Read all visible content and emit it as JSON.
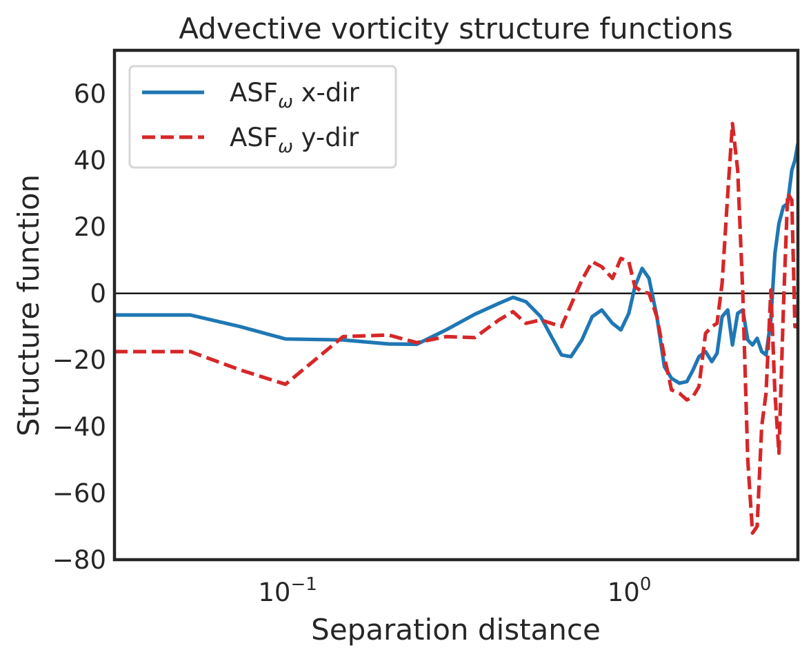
{
  "chart_data": {
    "type": "line",
    "title": "Advective vorticity structure functions",
    "xlabel": "Separation distance",
    "ylabel": "Structure function",
    "xscale": "log",
    "xlim": [
      0.03,
      3.0
    ],
    "ylim": [
      -80,
      73
    ],
    "yticks": [
      -80,
      -60,
      -40,
      -20,
      0,
      20,
      40,
      60
    ],
    "ytick_labels": [
      "−80",
      "−60",
      "−40",
      "−20",
      "0",
      "20",
      "40",
      "60"
    ],
    "xticks": [
      {
        "value": 0.1,
        "base": "10",
        "exp": "−1"
      },
      {
        "value": 1.0,
        "base": "10",
        "exp": "0"
      }
    ],
    "zero_line": true,
    "grid": false,
    "legend": {
      "position": "upper-left",
      "entries": [
        {
          "prefix": "ASF",
          "subscript": "ω",
          "suffix": " x-dir"
        },
        {
          "prefix": "ASF",
          "subscript": "ω",
          "suffix": " y-dir"
        }
      ]
    },
    "series": [
      {
        "name": "ASFω x-dir",
        "color": "#1f77b4",
        "style": "solid",
        "x": [
          0.03,
          0.05,
          0.07,
          0.095,
          0.14,
          0.19,
          0.23,
          0.28,
          0.34,
          0.4,
          0.44,
          0.48,
          0.53,
          0.57,
          0.61,
          0.65,
          0.7,
          0.75,
          0.8,
          0.86,
          0.91,
          0.96,
          1.0,
          1.05,
          1.1,
          1.16,
          1.22,
          1.28,
          1.35,
          1.42,
          1.48,
          1.54,
          1.61,
          1.68,
          1.74,
          1.8,
          1.87,
          1.93,
          2.0,
          2.07,
          2.14,
          2.21,
          2.28,
          2.35,
          2.42,
          2.5,
          2.57,
          2.64,
          2.72,
          2.8,
          2.88,
          2.94,
          3.0
        ],
        "y": [
          -6.5,
          -6.5,
          -10,
          -13.7,
          -14,
          -15.2,
          -15.3,
          -11,
          -6.3,
          -3,
          -1.2,
          -2.5,
          -7,
          -13,
          -18.5,
          -19,
          -14,
          -7,
          -5,
          -9,
          -11,
          -6,
          2,
          7.5,
          4.5,
          -7,
          -22,
          -25.5,
          -27,
          -26.5,
          -23,
          -19,
          -17.5,
          -20.5,
          -18,
          -7,
          -5,
          -15.5,
          -6,
          -5,
          -14,
          -15.5,
          -13.5,
          -17.5,
          -18.5,
          -8,
          12,
          21,
          26,
          27,
          37,
          40,
          45
        ]
      },
      {
        "name": "ASFω y-dir",
        "color": "#d62728",
        "style": "dashed",
        "x": [
          0.03,
          0.05,
          0.07,
          0.095,
          0.14,
          0.19,
          0.23,
          0.28,
          0.34,
          0.4,
          0.44,
          0.48,
          0.53,
          0.57,
          0.61,
          0.65,
          0.7,
          0.75,
          0.8,
          0.86,
          0.91,
          0.96,
          1.0,
          1.05,
          1.1,
          1.16,
          1.22,
          1.28,
          1.35,
          1.42,
          1.48,
          1.54,
          1.61,
          1.68,
          1.74,
          1.8,
          1.87,
          1.93,
          2.0,
          2.07,
          2.14,
          2.21,
          2.28,
          2.35,
          2.42,
          2.5,
          2.57,
          2.64,
          2.72,
          2.8,
          2.88,
          2.94,
          3.0
        ],
        "y": [
          -17.5,
          -17.5,
          -23,
          -27.3,
          -13,
          -12.5,
          -14.8,
          -13,
          -13.3,
          -8,
          -5.5,
          -9,
          -8,
          -9,
          -10,
          -3.5,
          4,
          9.5,
          8,
          4.5,
          10.5,
          9.5,
          2,
          0.5,
          0,
          -7,
          -19,
          -29,
          -30,
          -32,
          -31,
          -28,
          -12,
          -10,
          -9,
          3,
          30,
          51,
          37,
          0,
          -50,
          -72,
          -70,
          -40,
          -30,
          1,
          -30,
          -48,
          -5,
          30,
          28,
          -10,
          -10
        ]
      }
    ]
  }
}
